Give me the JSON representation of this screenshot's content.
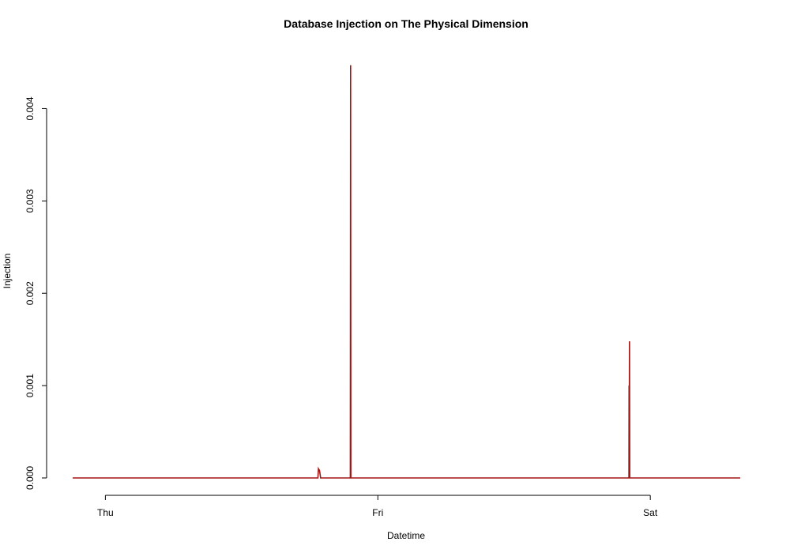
{
  "chart_data": {
    "type": "line",
    "title": "Database Injection on The Physical Dimension",
    "xlabel": "Datetime",
    "ylabel": "Injection",
    "x_ticks": [
      {
        "label": "Thu",
        "value": 0
      },
      {
        "label": "Fri",
        "value": 1
      },
      {
        "label": "Sat",
        "value": 2
      }
    ],
    "xlim": [
      -0.12,
      2.33
    ],
    "y_ticks": [
      {
        "label": "0.000",
        "value": 0.0
      },
      {
        "label": "0.001",
        "value": 0.001
      },
      {
        "label": "0.002",
        "value": 0.002
      },
      {
        "label": "0.003",
        "value": 0.003
      },
      {
        "label": "0.004",
        "value": 0.004
      }
    ],
    "ylim": [
      0,
      0.0045
    ],
    "series": [
      {
        "color": "#a31515",
        "points": [
          [
            -0.12,
            0
          ],
          [
            0.78,
            0
          ],
          [
            0.782,
            0.0001
          ],
          [
            0.786,
            8e-05
          ],
          [
            0.79,
            0
          ],
          [
            0.899,
            0
          ],
          [
            0.9,
            0.00447
          ],
          [
            0.901,
            0
          ],
          [
            1.9215,
            0
          ],
          [
            1.922,
            0.001
          ],
          [
            1.9225,
            0
          ],
          [
            1.9235,
            0.00148
          ],
          [
            1.9245,
            0
          ],
          [
            2.33,
            0
          ]
        ]
      }
    ]
  }
}
